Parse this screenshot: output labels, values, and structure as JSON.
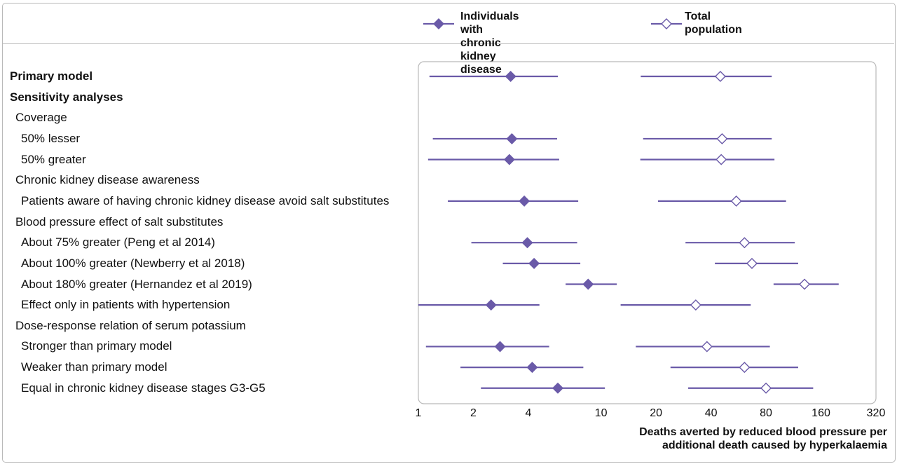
{
  "legend": {
    "ckd_label": "Individuals with\nchronic kidney disease",
    "total_label": "Total\npopulation"
  },
  "colors": {
    "series": "#6a5aa8",
    "frame": "#b9b9b9",
    "text": "#111111"
  },
  "chart_data": {
    "type": "forest",
    "xscale": "log2",
    "xlim": [
      1,
      320
    ],
    "xticks": [
      1,
      2,
      4,
      10,
      20,
      40,
      80,
      160,
      320
    ],
    "xtick_labels": [
      "1",
      "2",
      "4",
      "10",
      "20",
      "40",
      "80",
      "160",
      "320"
    ],
    "xlabel": "Deaths averted by reduced blood pressure per\nadditional death caused by hyperkalaemia",
    "series": [
      {
        "name": "Individuals with chronic kidney disease",
        "marker": "filled-diamond"
      },
      {
        "name": "Total population",
        "marker": "open-diamond"
      }
    ],
    "rows": [
      {
        "label": "Primary model",
        "style": "bold",
        "level": 0,
        "ckd": {
          "est": 3.2,
          "low": 1.15,
          "high": 5.8
        },
        "total": {
          "est": 45,
          "low": 16.5,
          "high": 86
        }
      },
      {
        "label": "Sensitivity analyses",
        "style": "bold",
        "level": 0
      },
      {
        "label": "Coverage",
        "style": "normal",
        "level": 1
      },
      {
        "label": "50% lesser",
        "style": "normal",
        "level": 2,
        "ckd": {
          "est": 3.25,
          "low": 1.2,
          "high": 5.75
        },
        "total": {
          "est": 46,
          "low": 17,
          "high": 86
        }
      },
      {
        "label": "50% greater",
        "style": "normal",
        "level": 2,
        "ckd": {
          "est": 3.15,
          "low": 1.13,
          "high": 5.9
        },
        "total": {
          "est": 45.5,
          "low": 16.4,
          "high": 89
        }
      },
      {
        "label": "Chronic kidney disease awareness",
        "style": "normal",
        "level": 1
      },
      {
        "label": "Patients aware of having chronic kidney disease avoid salt substitutes",
        "style": "normal",
        "level": 2,
        "ckd": {
          "est": 3.8,
          "low": 1.45,
          "high": 7.5
        },
        "total": {
          "est": 55,
          "low": 20.5,
          "high": 103
        }
      },
      {
        "label": "Blood pressure effect of salt substitutes",
        "style": "normal",
        "level": 1
      },
      {
        "label": "About 75% greater (Peng et al 2014)",
        "style": "normal",
        "level": 2,
        "ckd": {
          "est": 3.95,
          "low": 1.95,
          "high": 7.4
        },
        "total": {
          "est": 61,
          "low": 29,
          "high": 115
        }
      },
      {
        "label": "About 100% greater (Newberry et al 2018)",
        "style": "normal",
        "level": 2,
        "ckd": {
          "est": 4.3,
          "low": 2.9,
          "high": 7.7
        },
        "total": {
          "est": 67,
          "low": 42,
          "high": 120
        }
      },
      {
        "label": "About 180% greater (Hernandez et al 2019)",
        "style": "normal",
        "level": 2,
        "ckd": {
          "est": 8.5,
          "low": 6.4,
          "high": 12.2
        },
        "total": {
          "est": 130,
          "low": 88,
          "high": 200
        }
      },
      {
        "label": "Effect only in patients with hypertension",
        "style": "normal",
        "level": 2,
        "ckd": {
          "est": 2.5,
          "low": 1.0,
          "high": 4.6
        },
        "total": {
          "est": 33,
          "low": 12.8,
          "high": 66
        }
      },
      {
        "label": "Dose-response relation of serum potassium",
        "style": "normal",
        "level": 1
      },
      {
        "label": "Stronger than primary model",
        "style": "normal",
        "level": 2,
        "ckd": {
          "est": 2.8,
          "low": 1.1,
          "high": 5.2
        },
        "total": {
          "est": 38,
          "low": 15.5,
          "high": 84
        }
      },
      {
        "label": "Weaker than primary model",
        "style": "normal",
        "level": 2,
        "ckd": {
          "est": 4.2,
          "low": 1.7,
          "high": 8.0
        },
        "total": {
          "est": 61,
          "low": 24,
          "high": 120
        }
      },
      {
        "label": "Equal in chronic kidney disease stages G3-G5",
        "style": "normal",
        "level": 2,
        "ckd": {
          "est": 5.8,
          "low": 2.2,
          "high": 10.5
        },
        "total": {
          "est": 80,
          "low": 30,
          "high": 145
        }
      }
    ]
  }
}
